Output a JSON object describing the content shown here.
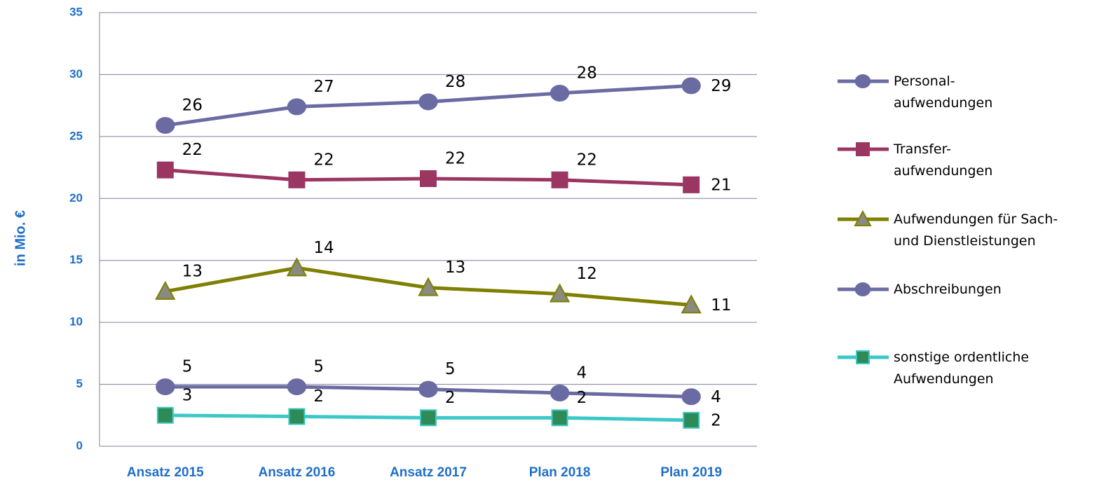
{
  "chart_data": {
    "type": "line",
    "y_label": "in Mio. €",
    "categories": [
      "Ansatz 2015",
      "Ansatz 2016",
      "Ansatz 2017",
      "Plan 2018",
      "Plan 2019"
    ],
    "ylim": [
      0,
      35
    ],
    "yticks": [
      0,
      5,
      10,
      15,
      20,
      25,
      30,
      35
    ],
    "grid": true,
    "series": [
      {
        "name": "Personal-\naufwendungen",
        "color": "#6b6ba3",
        "marker": "circle",
        "marker_fill": "#6b6ba3",
        "values": [
          25.9,
          27.4,
          27.8,
          28.5,
          29.1
        ],
        "value_labels": [
          "26",
          "27",
          "28",
          "28",
          "29"
        ]
      },
      {
        "name": "Transfer-\naufwendungen",
        "color": "#9b3663",
        "marker": "square",
        "marker_fill": "#9b3663",
        "values": [
          22.3,
          21.5,
          21.6,
          21.5,
          21.1
        ],
        "value_labels": [
          "22",
          "22",
          "22",
          "22",
          "21"
        ]
      },
      {
        "name": "Aufwendungen für Sach-\nund Dienstleistungen",
        "color": "#7f7f00",
        "marker": "triangle",
        "marker_fill": "#8a8a7e",
        "values": [
          12.5,
          14.4,
          12.8,
          12.3,
          11.4
        ],
        "value_labels": [
          "13",
          "14",
          "13",
          "12",
          "11"
        ]
      },
      {
        "name": "Abschreibungen",
        "color": "#6b6ba3",
        "marker": "circle",
        "marker_fill": "#6b6ba3",
        "values": [
          4.8,
          4.8,
          4.6,
          4.3,
          4.0
        ],
        "value_labels": [
          "5",
          "5",
          "5",
          "4",
          "4"
        ]
      },
      {
        "name": "sonstige ordentliche\nAufwendungen",
        "color": "#3cc8c8",
        "marker": "square",
        "marker_fill": "#2e8b57",
        "values": [
          2.5,
          2.4,
          2.3,
          2.3,
          2.1
        ],
        "value_labels": [
          "3",
          "2",
          "2",
          "2",
          "2"
        ]
      }
    ]
  }
}
